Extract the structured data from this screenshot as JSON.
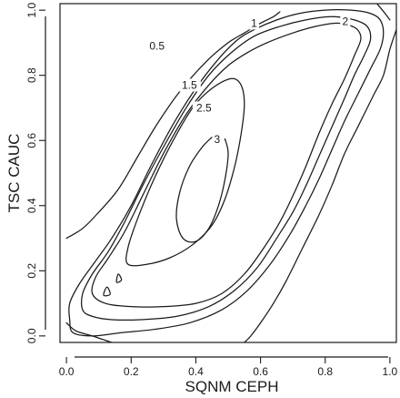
{
  "chart_data": {
    "type": "contour",
    "xlabel": "SQNM CEPH",
    "ylabel": "TSC CAUC",
    "xlim": [
      -0.02,
      1.02
    ],
    "ylim": [
      -0.02,
      1.02
    ],
    "x_ticks": [
      0.0,
      0.2,
      0.4,
      0.6,
      0.8,
      1.0
    ],
    "x_tick_labels": [
      "0.0",
      "0.2",
      "0.4",
      "0.6",
      "0.8",
      "1.0"
    ],
    "y_ticks": [
      0.0,
      0.2,
      0.4,
      0.6,
      0.8,
      1.0
    ],
    "y_tick_labels": [
      "0.0",
      "0.2",
      "0.4",
      "0.6",
      "0.8",
      "1.0"
    ],
    "grid": false,
    "contour_levels": [
      0.5,
      1,
      1.5,
      2,
      2.5,
      3
    ],
    "contours": [
      {
        "level": 0.5,
        "label": "0.5",
        "label_at": [
          0.28,
          0.89
        ],
        "paths": [
          [
            [
              0.0,
              0.3
            ],
            [
              0.05,
              0.33
            ],
            [
              0.1,
              0.38
            ],
            [
              0.16,
              0.45
            ],
            [
              0.22,
              0.55
            ],
            [
              0.28,
              0.65
            ],
            [
              0.35,
              0.75
            ],
            [
              0.43,
              0.84
            ],
            [
              0.5,
              0.9
            ],
            [
              0.55,
              0.93
            ],
            [
              0.6,
              0.96
            ],
            [
              0.64,
              0.98
            ],
            [
              0.66,
              0.995
            ]
          ],
          [
            [
              0.0,
              0.04
            ],
            [
              0.03,
              0.015
            ],
            [
              0.08,
              0.0
            ],
            [
              0.14,
              -0.02
            ]
          ],
          [
            [
              1.02,
              0.94
            ],
            [
              1.0,
              0.88
            ],
            [
              0.98,
              0.8
            ],
            [
              0.95,
              0.74
            ],
            [
              0.9,
              0.64
            ],
            [
              0.86,
              0.56
            ],
            [
              0.82,
              0.46
            ],
            [
              0.78,
              0.37
            ],
            [
              0.73,
              0.27
            ],
            [
              0.68,
              0.17
            ],
            [
              0.64,
              0.1
            ],
            [
              0.6,
              0.04
            ],
            [
              0.57,
              0.0
            ],
            [
              0.55,
              -0.02
            ]
          ],
          [
            [
              0.96,
              1.02
            ],
            [
              0.985,
              0.99
            ],
            [
              1.0,
              0.97
            ]
          ]
        ]
      },
      {
        "level": 1,
        "label": "1",
        "label_at": [
          0.58,
          0.96
        ],
        "paths": [
          [
            [
              0.02,
              0.01
            ],
            [
              0.01,
              0.05
            ],
            [
              0.01,
              0.1
            ],
            [
              0.04,
              0.16
            ],
            [
              0.09,
              0.23
            ],
            [
              0.14,
              0.3
            ],
            [
              0.2,
              0.4
            ],
            [
              0.26,
              0.52
            ],
            [
              0.33,
              0.65
            ],
            [
              0.4,
              0.76
            ],
            [
              0.47,
              0.85
            ],
            [
              0.53,
              0.91
            ],
            [
              0.58,
              0.94
            ],
            [
              0.65,
              0.97
            ],
            [
              0.72,
              0.99
            ],
            [
              0.8,
              1.0
            ],
            [
              0.88,
              1.0
            ],
            [
              0.94,
              0.99
            ],
            [
              0.97,
              0.97
            ],
            [
              0.98,
              0.93
            ],
            [
              0.97,
              0.88
            ],
            [
              0.94,
              0.82
            ],
            [
              0.9,
              0.74
            ],
            [
              0.86,
              0.66
            ],
            [
              0.82,
              0.57
            ],
            [
              0.78,
              0.48
            ],
            [
              0.74,
              0.4
            ],
            [
              0.69,
              0.31
            ],
            [
              0.63,
              0.22
            ],
            [
              0.56,
              0.14
            ],
            [
              0.48,
              0.08
            ],
            [
              0.38,
              0.04
            ],
            [
              0.27,
              0.02
            ],
            [
              0.17,
              0.01
            ],
            [
              0.08,
              0.0
            ],
            [
              0.02,
              0.01
            ]
          ]
        ]
      },
      {
        "level": 1.5,
        "label": "1.5",
        "label_at": [
          0.38,
          0.77
        ],
        "paths": [
          [
            [
              0.05,
              0.08
            ],
            [
              0.05,
              0.13
            ],
            [
              0.08,
              0.19
            ],
            [
              0.13,
              0.26
            ],
            [
              0.18,
              0.35
            ],
            [
              0.24,
              0.47
            ],
            [
              0.3,
              0.58
            ],
            [
              0.37,
              0.7
            ],
            [
              0.44,
              0.8
            ],
            [
              0.51,
              0.87
            ],
            [
              0.58,
              0.92
            ],
            [
              0.66,
              0.95
            ],
            [
              0.74,
              0.97
            ],
            [
              0.82,
              0.98
            ],
            [
              0.89,
              0.97
            ],
            [
              0.93,
              0.95
            ],
            [
              0.94,
              0.91
            ],
            [
              0.92,
              0.86
            ],
            [
              0.89,
              0.8
            ],
            [
              0.86,
              0.73
            ],
            [
              0.82,
              0.64
            ],
            [
              0.78,
              0.55
            ],
            [
              0.74,
              0.46
            ],
            [
              0.7,
              0.38
            ],
            [
              0.65,
              0.3
            ],
            [
              0.59,
              0.21
            ],
            [
              0.52,
              0.14
            ],
            [
              0.44,
              0.09
            ],
            [
              0.34,
              0.06
            ],
            [
              0.23,
              0.05
            ],
            [
              0.14,
              0.05
            ],
            [
              0.08,
              0.06
            ],
            [
              0.05,
              0.08
            ]
          ]
        ]
      },
      {
        "level": 2,
        "label": "2",
        "label_at": [
          0.862,
          0.965
        ],
        "paths": [
          [
            [
              0.08,
              0.13
            ],
            [
              0.09,
              0.18
            ],
            [
              0.13,
              0.24
            ],
            [
              0.18,
              0.32
            ],
            [
              0.24,
              0.44
            ],
            [
              0.3,
              0.56
            ],
            [
              0.37,
              0.68
            ],
            [
              0.44,
              0.77
            ],
            [
              0.5,
              0.83
            ],
            [
              0.56,
              0.87
            ],
            [
              0.62,
              0.9
            ],
            [
              0.7,
              0.93
            ],
            [
              0.77,
              0.95
            ],
            [
              0.83,
              0.96
            ],
            [
              0.87,
              0.955
            ],
            [
              0.9,
              0.94
            ],
            [
              0.91,
              0.91
            ],
            [
              0.89,
              0.86
            ],
            [
              0.86,
              0.79
            ],
            [
              0.82,
              0.71
            ],
            [
              0.78,
              0.62
            ],
            [
              0.74,
              0.52
            ],
            [
              0.7,
              0.43
            ],
            [
              0.66,
              0.35
            ],
            [
              0.61,
              0.27
            ],
            [
              0.55,
              0.19
            ],
            [
              0.48,
              0.13
            ],
            [
              0.4,
              0.1
            ],
            [
              0.3,
              0.09
            ],
            [
              0.2,
              0.09
            ],
            [
              0.12,
              0.1
            ],
            [
              0.08,
              0.13
            ]
          ]
        ]
      },
      {
        "level": 2.5,
        "label": "2.5",
        "label_at": [
          0.425,
          0.7
        ],
        "paths": [
          [
            [
              0.19,
              0.22
            ],
            [
              0.19,
              0.27
            ],
            [
              0.22,
              0.36
            ],
            [
              0.27,
              0.48
            ],
            [
              0.33,
              0.6
            ],
            [
              0.39,
              0.7
            ],
            [
              0.45,
              0.76
            ],
            [
              0.51,
              0.79
            ],
            [
              0.54,
              0.77
            ],
            [
              0.55,
              0.71
            ],
            [
              0.54,
              0.62
            ],
            [
              0.52,
              0.52
            ],
            [
              0.49,
              0.42
            ],
            [
              0.45,
              0.34
            ],
            [
              0.39,
              0.28
            ],
            [
              0.32,
              0.24
            ],
            [
              0.25,
              0.22
            ],
            [
              0.19,
              0.22
            ]
          ]
        ]
      },
      {
        "level": 3,
        "label": "3",
        "label_at": [
          0.466,
          0.604
        ],
        "paths": [
          [
            [
              0.49,
              0.605
            ],
            [
              0.5,
              0.56
            ],
            [
              0.49,
              0.48
            ],
            [
              0.47,
              0.4
            ],
            [
              0.44,
              0.33
            ],
            [
              0.4,
              0.29
            ],
            [
              0.36,
              0.3
            ],
            [
              0.34,
              0.36
            ],
            [
              0.35,
              0.44
            ],
            [
              0.38,
              0.52
            ],
            [
              0.42,
              0.58
            ],
            [
              0.45,
              0.61
            ]
          ],
          [
            [
              0.115,
              0.125
            ],
            [
              0.125,
              0.15
            ],
            [
              0.135,
              0.128
            ],
            [
              0.115,
              0.125
            ]
          ],
          [
            [
              0.155,
              0.165
            ],
            [
              0.16,
              0.19
            ],
            [
              0.17,
              0.172
            ],
            [
              0.155,
              0.165
            ]
          ]
        ]
      }
    ]
  }
}
